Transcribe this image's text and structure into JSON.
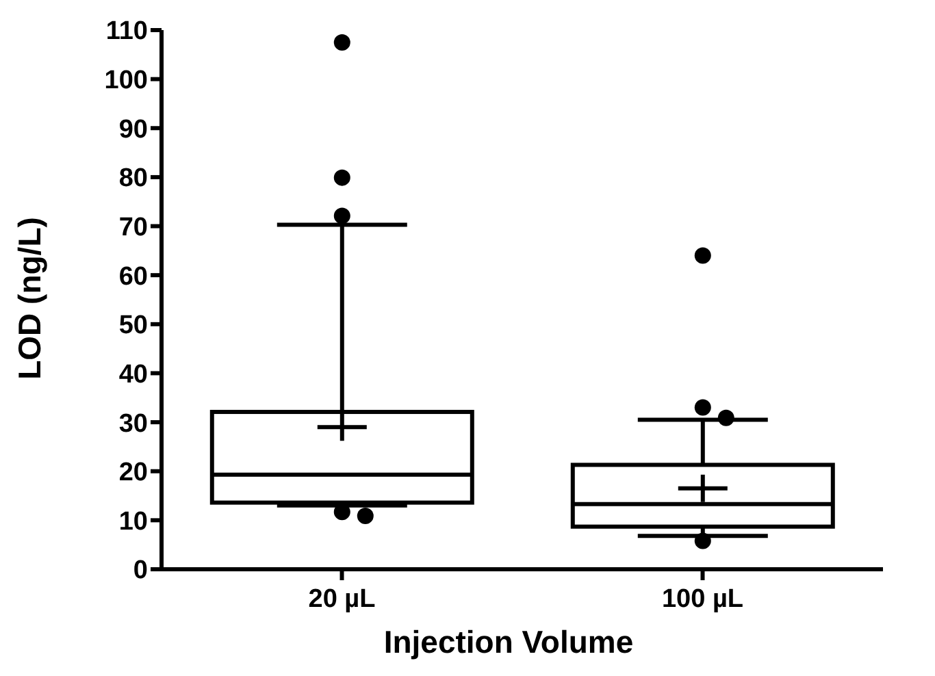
{
  "chart_data": {
    "type": "box",
    "xlabel": "Injection Volume",
    "ylabel": "LOD (ng/L)",
    "categories": [
      "20 µL",
      "100 µL"
    ],
    "color": "#000000",
    "ylim": [
      0,
      110
    ],
    "yticks": [
      0,
      10,
      20,
      30,
      40,
      50,
      60,
      70,
      80,
      90,
      100,
      110
    ],
    "boxes": [
      {
        "low": 13,
        "q1": 13.6,
        "median": 19.3,
        "q3": 32.1,
        "high": 70.3,
        "mean": 29,
        "outliers": [
          107.5,
          79.9,
          72.1,
          11.7,
          10.9
        ]
      },
      {
        "low": 6.8,
        "q1": 8.7,
        "median": 13.3,
        "q3": 21.3,
        "high": 30.5,
        "mean": 16.5,
        "outliers": [
          64,
          33,
          30.9,
          5.8
        ]
      }
    ]
  }
}
